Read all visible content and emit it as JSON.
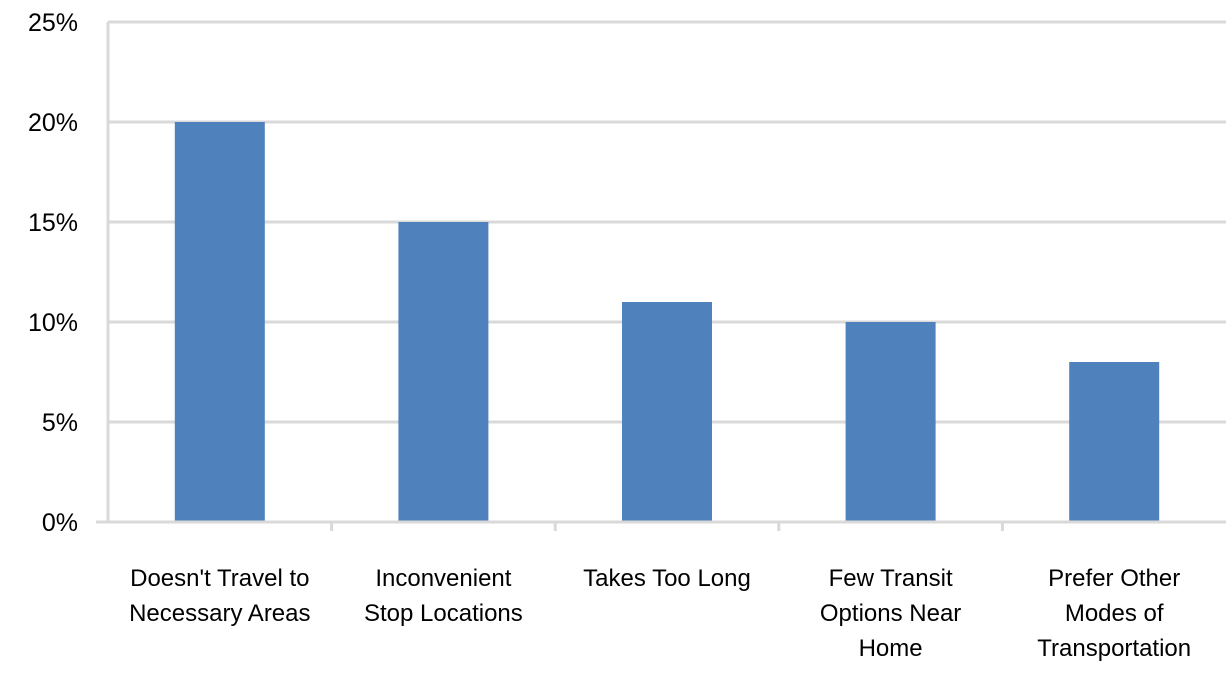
{
  "chart_data": {
    "type": "bar",
    "title": "",
    "xlabel": "",
    "ylabel": "",
    "categories": [
      [
        "Doesn't Travel to",
        "Necessary Areas"
      ],
      [
        "Inconvenient",
        "Stop Locations"
      ],
      [
        "Takes Too Long"
      ],
      [
        "Few Transit",
        "Options Near",
        "Home"
      ],
      [
        "Prefer Other",
        "Modes of",
        "Transportation"
      ]
    ],
    "series": [
      {
        "values": [
          20,
          15,
          11,
          10,
          8
        ],
        "color": "#4f81bd"
      }
    ],
    "ylim": [
      0,
      25
    ],
    "yticks": [
      0,
      5,
      10,
      15,
      20,
      25
    ],
    "ytick_labels": [
      "0%",
      "5%",
      "10%",
      "15%",
      "20%",
      "25%"
    ],
    "grid": true,
    "legend": "none"
  },
  "colors": {
    "bar": "#4f81bd",
    "gridline": "#d9d9d9",
    "axis": "#d9d9d9",
    "text": "#000000"
  }
}
